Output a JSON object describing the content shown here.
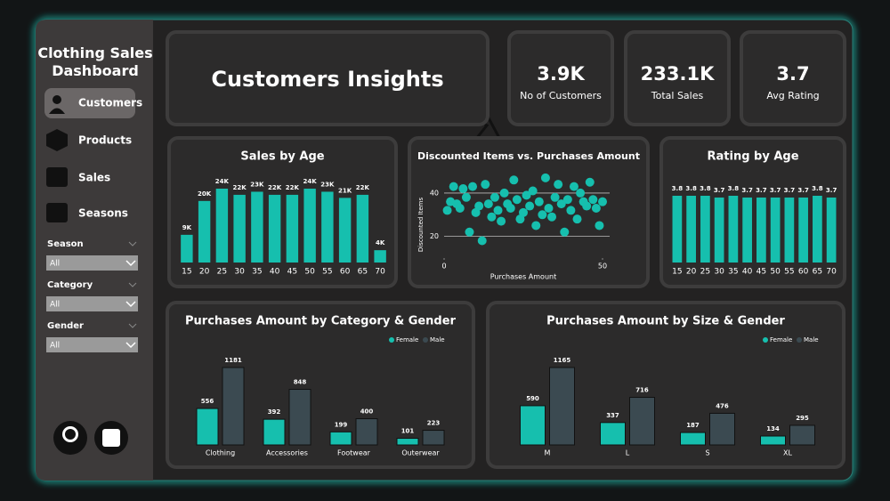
{
  "sidebar": {
    "title": "Clothing Sales Dashboard",
    "nav": [
      "Customers",
      "Products",
      "Sales",
      "Seasons"
    ],
    "filters": [
      {
        "label": "Season",
        "value": "All"
      },
      {
        "label": "Category",
        "value": "All"
      },
      {
        "label": "Gender",
        "value": "All"
      }
    ]
  },
  "header": {
    "title": "Customers Insights"
  },
  "kpis": [
    {
      "value": "3.9K",
      "label": "No of Customers"
    },
    {
      "value": "233.1K",
      "label": "Total Sales"
    },
    {
      "value": "3.7",
      "label": "Avg Rating"
    }
  ],
  "chart_data": [
    {
      "type": "bar",
      "title": "Sales by Age",
      "color": "#16bfae",
      "categories": [
        15,
        20,
        25,
        30,
        35,
        40,
        45,
        50,
        55,
        60,
        65,
        70
      ],
      "values": [
        9000,
        20000,
        24000,
        22000,
        23000,
        22000,
        22000,
        24000,
        23000,
        21000,
        22000,
        4000
      ],
      "value_labels": [
        "9K",
        "20K",
        "24K",
        "22K",
        "23K",
        "22K",
        "22K",
        "24K",
        "23K",
        "21K",
        "22K",
        "4K"
      ]
    },
    {
      "type": "scatter",
      "title": "Discounted Items vs. Purchases Amount",
      "color": "#16bfae",
      "x_label": "Purchases Amount",
      "y_label": "Discounted Items",
      "x": [
        1,
        2,
        3,
        4,
        5,
        6,
        7,
        8,
        9,
        10,
        11,
        12,
        13,
        14,
        15,
        16,
        17,
        18,
        19,
        20,
        21,
        22,
        23,
        24,
        25,
        26,
        27,
        28,
        29,
        30,
        31,
        32,
        33,
        34,
        35,
        36,
        37,
        38,
        39,
        40,
        41,
        42,
        43,
        44,
        45,
        46,
        47,
        48,
        49,
        50
      ],
      "values": [
        32,
        36,
        43,
        35,
        33,
        42,
        38,
        22,
        43,
        31,
        34,
        18,
        44,
        35,
        29,
        38,
        32,
        27,
        40,
        35,
        33,
        46,
        37,
        28,
        31,
        39,
        34,
        41,
        25,
        36,
        30,
        47,
        33,
        29,
        38,
        44,
        35,
        22,
        37,
        32,
        43,
        28,
        40,
        36,
        34,
        45,
        37,
        33,
        25,
        36
      ],
      "xlim": [
        0,
        50
      ],
      "ylim": [
        10,
        49
      ],
      "xticks": [
        0,
        50
      ],
      "yticks": [
        20,
        40
      ],
      "grid": true
    },
    {
      "type": "bar",
      "title": "Rating by Age",
      "color": "#16bfae",
      "categories": [
        15,
        20,
        25,
        30,
        35,
        40,
        45,
        50,
        55,
        60,
        65,
        70
      ],
      "values": [
        3.8,
        3.8,
        3.8,
        3.7,
        3.8,
        3.7,
        3.7,
        3.7,
        3.7,
        3.7,
        3.8,
        3.7
      ]
    },
    {
      "type": "grouped_bar",
      "title": "Purchases Amount by Category & Gender",
      "legend": "top-right",
      "categories": [
        "Clothing",
        "Accessories",
        "Footwear",
        "Outerwear"
      ],
      "series": [
        {
          "name": "Female",
          "color": "#16bfae",
          "values": [
            556,
            392,
            199,
            101
          ]
        },
        {
          "name": "Male",
          "color": "#3b4a51",
          "values": [
            1181,
            848,
            400,
            223
          ]
        }
      ]
    },
    {
      "type": "grouped_bar",
      "title": "Purchases Amount by Size & Gender",
      "legend": "top-right",
      "categories": [
        "M",
        "L",
        "S",
        "XL"
      ],
      "series": [
        {
          "name": "Female",
          "color": "#16bfae",
          "values": [
            590,
            337,
            187,
            134
          ]
        },
        {
          "name": "Male",
          "color": "#3b4a51",
          "values": [
            1165,
            716,
            476,
            295
          ]
        }
      ]
    }
  ]
}
